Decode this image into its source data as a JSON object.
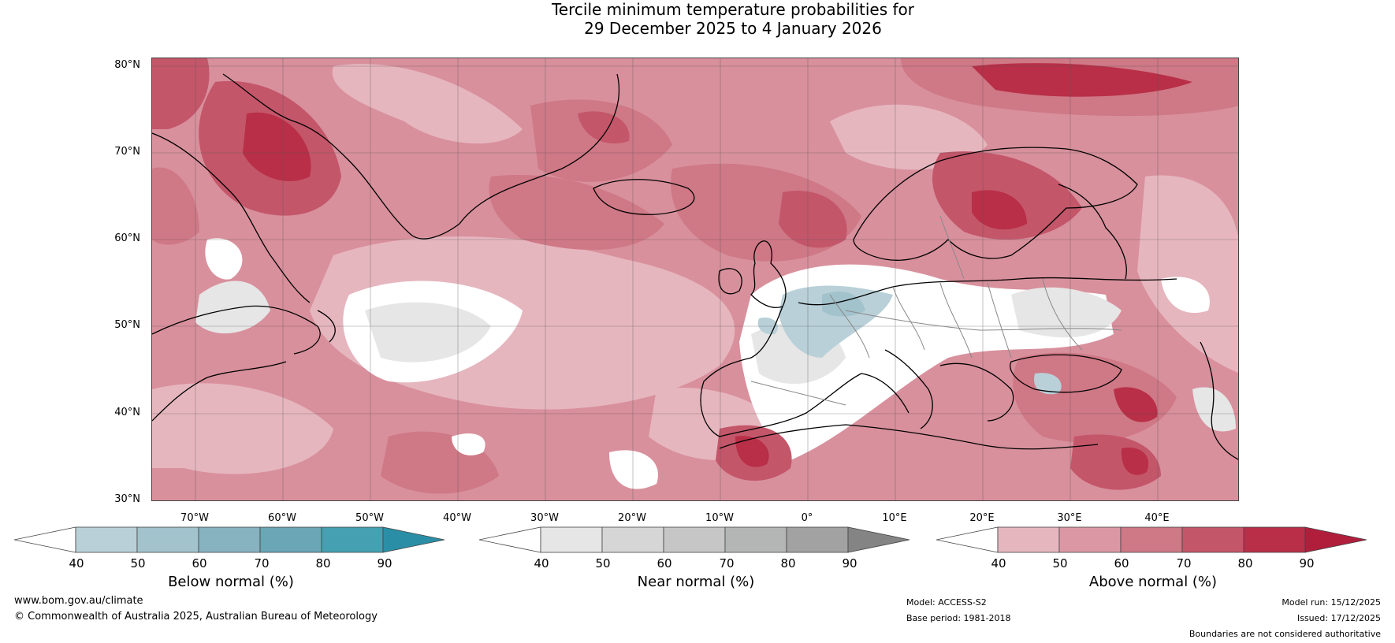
{
  "title_line1": "Tercile minimum temperature probabilities for",
  "title_line2": "29 December 2025 to 4 January 2026",
  "lat_labels": [
    "80°N",
    "70°N",
    "60°N",
    "50°N",
    "40°N",
    "30°N"
  ],
  "lon_labels": [
    "70°W",
    "60°W",
    "50°W",
    "40°W",
    "30°W",
    "20°W",
    "10°W",
    "0°",
    "10°E",
    "20°E",
    "30°E",
    "40°E"
  ],
  "colorbars": [
    {
      "title": "Below normal (%)",
      "ticks": [
        "40",
        "50",
        "60",
        "70",
        "80",
        "90"
      ],
      "colors": [
        "#ffffff",
        "#b9d0d8",
        "#a2c2cc",
        "#87b2bf",
        "#6aa6b5",
        "#45a0b2",
        "#2a8fa6"
      ]
    },
    {
      "title": "Near normal (%)",
      "ticks": [
        "40",
        "50",
        "60",
        "70",
        "80",
        "90"
      ],
      "colors": [
        "#ffffff",
        "#e6e6e6",
        "#d6d6d6",
        "#c6c6c6",
        "#b4b6b5",
        "#a2a2a2",
        "#848484"
      ]
    },
    {
      "title": "Above normal (%)",
      "ticks": [
        "40",
        "50",
        "60",
        "70",
        "80",
        "90"
      ],
      "colors": [
        "#ffffff",
        "#e6b6bf",
        "#db98a4",
        "#cf7886",
        "#c4566a",
        "#b82f47",
        "#b01e3c"
      ]
    }
  ],
  "footer": {
    "website": "www.bom.gov.au/climate",
    "copyright": "© Commonwealth of Australia 2025, Australian Bureau of Meteorology",
    "model": "Model: ACCESS-S2",
    "base_period": "Base period: 1981-2018",
    "model_run": "Model run: 15/12/2025",
    "issued": "Issued: 17/12/2025",
    "disclaimer": "Boundaries are not considered authoritative"
  }
}
